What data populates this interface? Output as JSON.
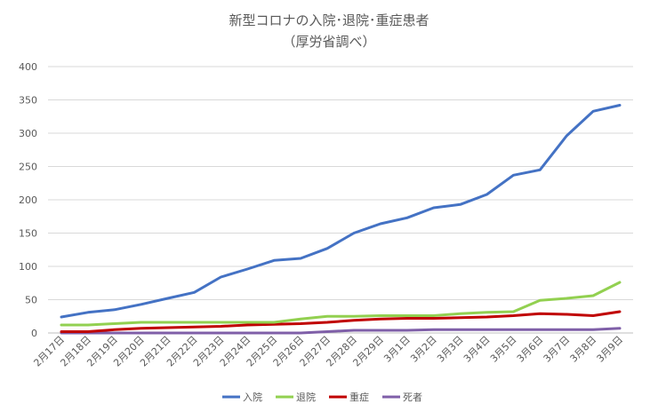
{
  "chart_data": {
    "type": "line",
    "title_lines": [
      "新型コロナの入院･退院･重症患者",
      "（厚労省調べ）"
    ],
    "xlabel": "",
    "ylabel": "",
    "ylim": [
      0,
      400
    ],
    "y_ticks": [
      0,
      50,
      100,
      150,
      200,
      250,
      300,
      350,
      400
    ],
    "grid": "horizontal",
    "legend_position": "bottom",
    "categories": [
      "2月17日",
      "2月18日",
      "2月19日",
      "2月20日",
      "2月21日",
      "2月22日",
      "2月23日",
      "2月24日",
      "2月25日",
      "2月26日",
      "2月27日",
      "2月28日",
      "2月29日",
      "3月1日",
      "3月2日",
      "3月3日",
      "3月4日",
      "3月5日",
      "3月6日",
      "3月7日",
      "3月8日",
      "3月9日"
    ],
    "series": [
      {
        "name": "入院",
        "color": "#4472c4",
        "values": [
          24,
          31,
          35,
          43,
          52,
          61,
          84,
          96,
          109,
          112,
          127,
          150,
          164,
          173,
          188,
          193,
          208,
          237,
          245,
          296,
          333,
          342
        ]
      },
      {
        "name": "退院",
        "color": "#92d050",
        "values": [
          12,
          12,
          14,
          16,
          16,
          16,
          16,
          16,
          16,
          21,
          25,
          25,
          26,
          26,
          26,
          29,
          31,
          32,
          49,
          52,
          56,
          76
        ]
      },
      {
        "name": "重症",
        "color": "#c00000",
        "values": [
          2,
          2,
          5,
          7,
          8,
          9,
          10,
          12,
          13,
          14,
          16,
          19,
          21,
          22,
          22,
          23,
          24,
          26,
          29,
          28,
          26,
          32
        ]
      },
      {
        "name": "死者",
        "color": "#7f5fa8",
        "values": [
          0,
          0,
          0,
          0,
          0,
          0,
          0,
          0,
          0,
          0,
          2,
          4,
          4,
          4,
          5,
          5,
          5,
          5,
          5,
          5,
          5,
          7
        ]
      }
    ]
  }
}
